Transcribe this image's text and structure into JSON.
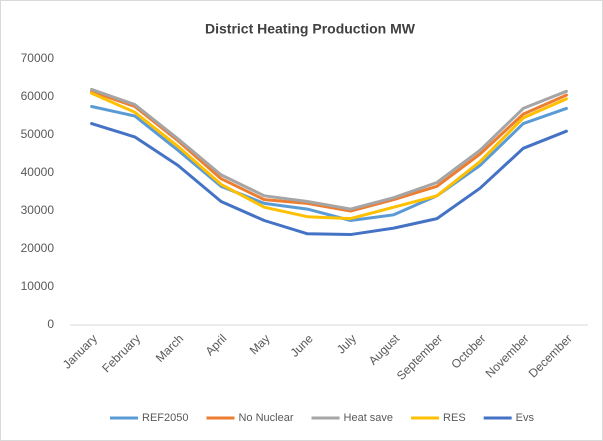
{
  "chart_data": {
    "type": "line",
    "title": "District Heating Production MW",
    "categories": [
      "January",
      "February",
      "March",
      "April",
      "May",
      "June",
      "July",
      "August",
      "September",
      "October",
      "November",
      "December"
    ],
    "series": [
      {
        "name": "REF2050",
        "color": "#5b9bd5",
        "values": [
          57500,
          55000,
          46000,
          36500,
          32000,
          30500,
          27500,
          29000,
          34000,
          42000,
          53000,
          57000
        ]
      },
      {
        "name": "No Nuclear",
        "color": "#ed7d31",
        "values": [
          61500,
          57500,
          48500,
          38500,
          33000,
          32000,
          30000,
          33000,
          36500,
          45000,
          55500,
          60500
        ]
      },
      {
        "name": "Heat save",
        "color": "#a5a5a5",
        "values": [
          62000,
          58000,
          49000,
          39500,
          34000,
          32500,
          30500,
          33500,
          37500,
          46000,
          57000,
          61500
        ]
      },
      {
        "name": "RES",
        "color": "#ffc000",
        "values": [
          61000,
          56000,
          47000,
          37000,
          31000,
          28500,
          28000,
          31000,
          34000,
          43000,
          54500,
          59500
        ]
      },
      {
        "name": "Evs",
        "color": "#4472c4",
        "values": [
          53000,
          49500,
          42000,
          32500,
          27500,
          24000,
          23800,
          25500,
          28000,
          36000,
          46500,
          51000
        ]
      }
    ],
    "ylim": [
      0,
      70000
    ],
    "yticks": [
      0,
      10000,
      20000,
      30000,
      40000,
      50000,
      60000,
      70000
    ],
    "grid": false,
    "legend": "bottom"
  }
}
